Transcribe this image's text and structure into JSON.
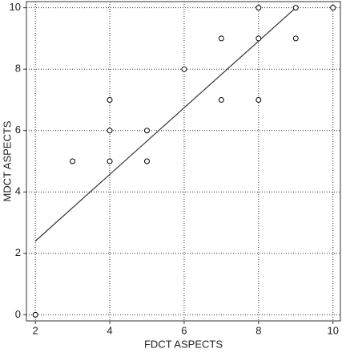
{
  "chart_data": {
    "type": "scatter",
    "x_label": "FDCT ASPECTS",
    "y_label": "MDCT ASPECTS",
    "x": [
      2,
      3,
      4,
      4,
      4,
      5,
      5,
      6,
      7,
      7,
      8,
      8,
      8,
      9,
      9,
      10
    ],
    "y": [
      0,
      5,
      7,
      6,
      5,
      6,
      5,
      8,
      9,
      7,
      10,
      9,
      7,
      10,
      9,
      10
    ],
    "color": "#000000",
    "fit_line": {
      "x": [
        2,
        9
      ],
      "y": [
        2.4,
        10
      ],
      "color": "#333333"
    },
    "xlim": [
      1.76,
      10.2
    ],
    "ylim": [
      -0.2,
      10.2
    ],
    "xticks": [
      2,
      4,
      6,
      8,
      10
    ],
    "yticks": [
      0,
      2,
      4,
      6,
      8,
      10
    ],
    "grid": true
  }
}
